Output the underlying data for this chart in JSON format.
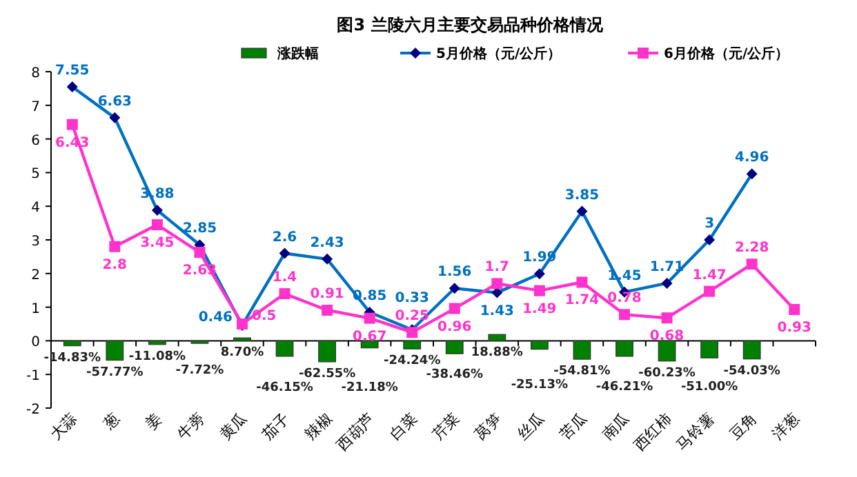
{
  "chart_data": {
    "type": "bar",
    "title": "图3  兰陵六月主要交易品种价格情况",
    "categories": [
      "大蒜",
      "葱",
      "姜",
      "牛蒡",
      "黄瓜",
      "茄子",
      "辣椒",
      "西葫芦",
      "白菜",
      "芹菜",
      "莴笋",
      "丝瓜",
      "苦瓜",
      "南瓜",
      "西红柿",
      "马铃薯",
      "豆角",
      "洋葱"
    ],
    "series": [
      {
        "name": "涨跌幅",
        "color": "#008000",
        "values": [
          -0.1483,
          -0.5777,
          -0.1108,
          -0.0772,
          0.087,
          -0.4615,
          -0.6255,
          -0.2118,
          -0.2424,
          -0.3846,
          0.1888,
          -0.2513,
          -0.5481,
          -0.4621,
          -0.6023,
          -0.51,
          -0.5403,
          null
        ],
        "value_labels": [
          "-14.83%",
          "-57.77%",
          "-11.08%",
          "-7.72%",
          "8.70%",
          "-46.15%",
          "-62.55%",
          "-21.18%",
          "-24.24%",
          "-38.46%",
          "18.88%",
          "-25.13%",
          "-54.81%",
          "-46.21%",
          "-60.23%",
          "-51.00%",
          "-54.03%",
          null
        ]
      },
      {
        "name": "5月价格（元/公斤）",
        "type": "line",
        "color": "#0070c0",
        "marker": "diamond",
        "values": [
          7.55,
          6.63,
          3.88,
          2.85,
          0.46,
          2.6,
          2.43,
          0.85,
          0.33,
          1.56,
          1.43,
          1.99,
          3.85,
          1.45,
          1.71,
          3,
          4.96,
          null
        ],
        "data_labels": true
      },
      {
        "name": "6月价格（元/公斤）",
        "type": "line",
        "color": "#ff33cc",
        "marker": "square",
        "values": [
          6.43,
          2.8,
          3.45,
          2.63,
          0.5,
          1.4,
          0.91,
          0.67,
          0.25,
          0.96,
          1.7,
          1.49,
          1.74,
          0.78,
          0.68,
          1.47,
          2.28,
          0.93
        ],
        "data_labels": true
      }
    ],
    "ylim": [
      -2,
      8
    ],
    "yticks": [
      -2,
      -1,
      0,
      1,
      2,
      3,
      4,
      5,
      6,
      7,
      8
    ],
    "legend": "top"
  }
}
